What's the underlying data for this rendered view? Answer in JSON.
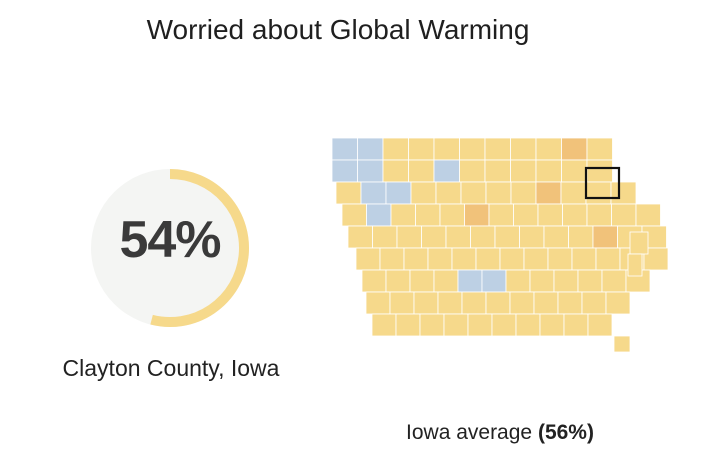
{
  "title": "Worried about Global Warming",
  "gauge": {
    "value": 54,
    "value_label": "54%",
    "track_color": "#f4f5f3",
    "fill_color": "#f6d98b"
  },
  "selection": {
    "county_label": "Clayton County, Iowa"
  },
  "state_average": {
    "prefix": "Iowa average",
    "value_label": "(56%)"
  },
  "map": {
    "colors": {
      "near_average": "#f6d98b",
      "above_average": "#f1c27a",
      "below_average": "#bdd0e4",
      "border": "#ffffff",
      "highlight_border": "#111111"
    }
  }
}
